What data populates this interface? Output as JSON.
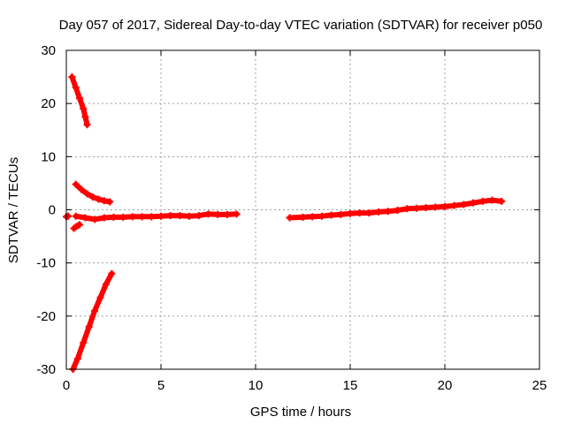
{
  "chart_data": {
    "type": "scatter",
    "title": "Day 057 of 2017, Sidereal Day-to-day VTEC variation (SDTVAR) for receiver p050",
    "xlabel": "GPS time / hours",
    "ylabel": "SDTVAR / TECUs",
    "xlim": [
      0,
      25
    ],
    "ylim": [
      -30,
      30
    ],
    "x_ticks": [
      0,
      5,
      10,
      15,
      20,
      25
    ],
    "y_ticks": [
      -30,
      -20,
      -10,
      0,
      10,
      20,
      30
    ],
    "grid": true,
    "marker": "plus",
    "color": "#ff0000",
    "series": [
      {
        "name": "trace-top-descending",
        "x": [
          0.3,
          0.5,
          0.7,
          0.9,
          1.0,
          1.1
        ],
        "y": [
          25,
          23,
          21,
          19,
          17.5,
          16
        ]
      },
      {
        "name": "trace-decay",
        "x": [
          0.5,
          0.8,
          1.1,
          1.4,
          1.7,
          2.0,
          2.3
        ],
        "y": [
          4.8,
          3.8,
          3.0,
          2.4,
          2.0,
          1.7,
          1.5
        ]
      },
      {
        "name": "trace-ramp",
        "x": [
          0.35,
          0.6,
          0.9,
          1.2,
          1.5,
          1.8,
          2.1,
          2.4
        ],
        "y": [
          -30,
          -28,
          -25,
          -22,
          -19,
          -16.5,
          -14,
          -12
        ]
      },
      {
        "name": "trace-short-low",
        "x": [
          0.4,
          0.5,
          0.6,
          0.7
        ],
        "y": [
          -3.5,
          -3.2,
          -3.0,
          -2.8
        ]
      },
      {
        "name": "trace-single",
        "x": [
          0.0,
          0.1
        ],
        "y": [
          -1.3,
          -1.2
        ]
      },
      {
        "name": "trace-main-early",
        "x": [
          0.5,
          1.0,
          1.5,
          2.0,
          2.5,
          3.0,
          3.5,
          4.0,
          4.5,
          5.0,
          5.5,
          6.0,
          6.5,
          7.0,
          7.5,
          8.0,
          8.5,
          9.0
        ],
        "y": [
          -1.2,
          -1.5,
          -1.8,
          -1.5,
          -1.4,
          -1.4,
          -1.3,
          -1.3,
          -1.3,
          -1.2,
          -1.1,
          -1.1,
          -1.2,
          -1.1,
          -0.8,
          -0.9,
          -0.9,
          -0.8
        ]
      },
      {
        "name": "trace-main-late",
        "x": [
          11.8,
          12.5,
          13.0,
          13.5,
          14.0,
          14.5,
          15.0,
          15.5,
          16.0,
          16.5,
          17.0,
          17.5,
          18.0,
          18.5,
          19.0,
          19.5,
          20.0,
          20.5,
          21.0,
          21.5,
          22.0,
          22.5,
          23.0
        ],
        "y": [
          -1.5,
          -1.4,
          -1.3,
          -1.2,
          -1.0,
          -0.9,
          -0.7,
          -0.6,
          -0.6,
          -0.4,
          -0.3,
          -0.1,
          0.2,
          0.3,
          0.4,
          0.5,
          0.6,
          0.8,
          1.0,
          1.3,
          1.6,
          1.8,
          1.6
        ]
      }
    ]
  }
}
